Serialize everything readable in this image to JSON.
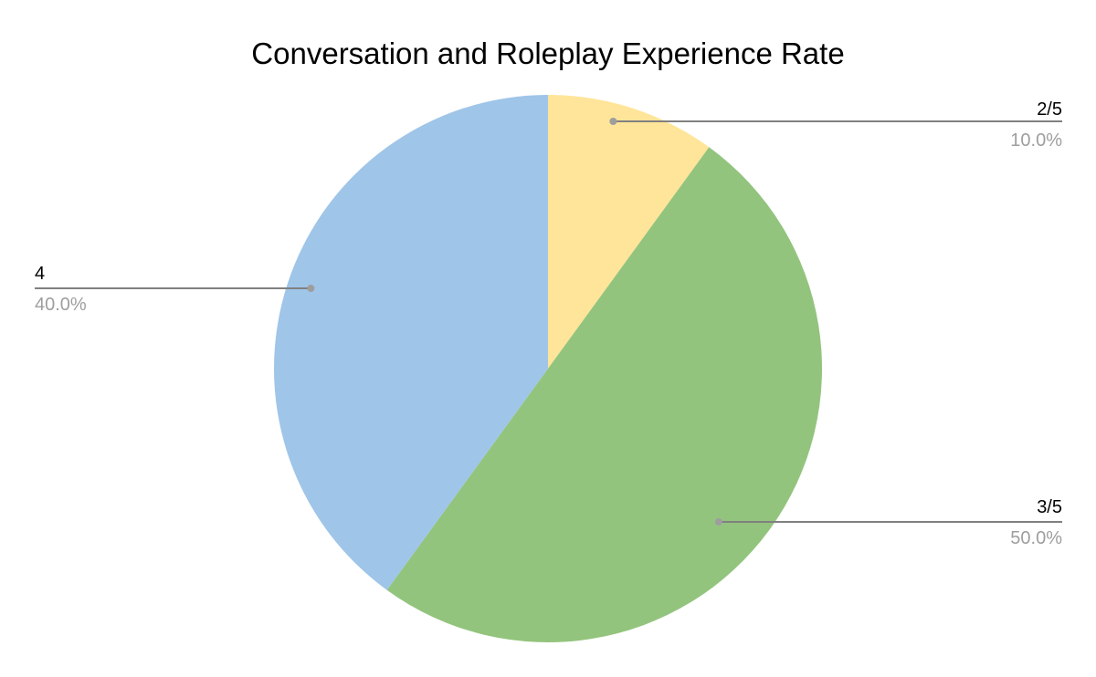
{
  "chart_data": {
    "type": "pie",
    "title": "Conversation and Roleplay Experience Rate",
    "slices": [
      {
        "label": "2/5",
        "value": 10.0,
        "percent_label": "10.0%",
        "color": "#ffe599"
      },
      {
        "label": "3/5",
        "value": 50.0,
        "percent_label": "50.0%",
        "color": "#93c47d"
      },
      {
        "label": "4",
        "value": 40.0,
        "percent_label": "40.0%",
        "color": "#9fc5e8"
      }
    ],
    "start_angle": "12 o'clock",
    "direction": "clockwise",
    "labels": "outside with leader lines"
  }
}
